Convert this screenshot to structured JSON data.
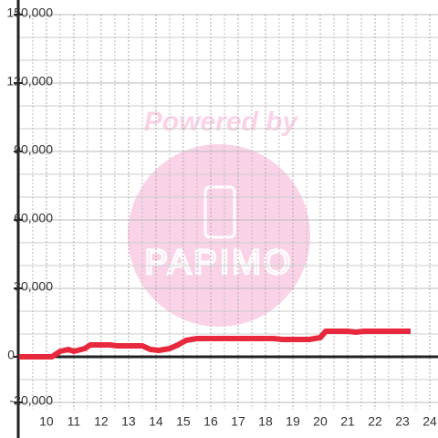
{
  "chart_data": {
    "type": "line",
    "watermark": {
      "text": "Powered by",
      "logo": "PAPIMO"
    },
    "x": [
      9,
      10.2,
      10.5,
      10.8,
      11,
      11.4,
      11.6,
      12.3,
      12.6,
      13.5,
      13.8,
      14.1,
      14.5,
      14.8,
      15.1,
      15.5,
      18.3,
      18.6,
      19.6,
      20,
      20.2,
      21,
      21.3,
      21.6,
      23.3
    ],
    "series": [
      {
        "color": "#e8283c",
        "values": [
          0,
          0,
          2400,
          3200,
          2400,
          3600,
          5200,
          5200,
          4800,
          4800,
          3200,
          2800,
          3600,
          5200,
          7200,
          8000,
          8000,
          7600,
          7600,
          8400,
          11200,
          11200,
          10800,
          11200,
          11200
        ]
      }
    ],
    "xlim": [
      8.97,
      24.3
    ],
    "xticks": [
      10,
      11,
      12,
      13,
      14,
      15,
      16,
      17,
      18,
      19,
      20,
      21,
      22,
      23,
      24
    ],
    "x_minor_ticks": [
      9.5,
      10.5,
      11.5,
      12.5,
      13.5,
      14.5,
      15.5,
      16.5,
      17.5,
      18.5,
      19.5,
      20.5,
      21.5,
      22.5,
      23.5
    ],
    "ylim": [
      -20000,
      150000
    ],
    "yticks": [
      {
        "value": -20000,
        "label": "-20,000"
      },
      0,
      {
        "value": 30000,
        "label": "30,000"
      },
      {
        "value": 60000,
        "label": "60,000"
      },
      {
        "value": 90000,
        "label": "90,000"
      },
      {
        "value": 120000,
        "label": "120,000"
      },
      {
        "value": 150000,
        "label": "150,000"
      }
    ],
    "y_minor_ticks": [
      -10000,
      10000,
      20000,
      40000,
      50000,
      70000,
      80000,
      100000,
      110000,
      130000,
      140000
    ],
    "grid": true
  }
}
